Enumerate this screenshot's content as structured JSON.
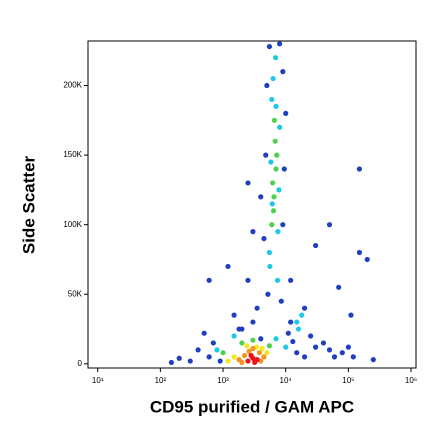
{
  "chart_data": {
    "type": "scatter",
    "xlabel": "CD95 purified / GAM APC",
    "ylabel": "Side Scatter",
    "xscale": "log",
    "xlim": [
      7,
      1200000
    ],
    "xticks": [
      {
        "value": 10,
        "label": "10¹"
      },
      {
        "value": 100,
        "label": "10²"
      },
      {
        "value": 1000,
        "label": "10³"
      },
      {
        "value": 10000,
        "label": "10⁴"
      },
      {
        "value": 100000,
        "label": "10⁵"
      },
      {
        "value": 1000000,
        "label": "10⁶"
      }
    ],
    "ylim": [
      -3000,
      232000
    ],
    "yticks": [
      0,
      {
        "value": 50000,
        "label": "50K"
      },
      {
        "value": 100000,
        "label": "100K"
      },
      {
        "value": 150000,
        "label": "150K"
      },
      {
        "value": 200000,
        "label": "200K"
      }
    ],
    "series": [
      {
        "color": "#1f3fbf",
        "x": [
          4500,
          9000,
          4800,
          9500,
          5000,
          9000,
          4000,
          10000,
          5500,
          8000,
          5200,
          8500,
          3500,
          12000,
          20000,
          25000,
          30000,
          50000,
          80000,
          100000,
          120000,
          40000,
          15000,
          600,
          400,
          300,
          700,
          150,
          200,
          2000,
          1500,
          3000,
          2500,
          600,
          1200,
          3000,
          70000,
          110000,
          150000,
          150000,
          200000,
          50000,
          30000,
          12000,
          2500,
          1800,
          4000,
          500,
          900,
          11000,
          13000,
          60000,
          250000,
          20000
        ],
        "values": [
          90000,
          100000,
          150000,
          140000,
          200000,
          210000,
          120000,
          180000,
          228000,
          230000,
          50000,
          45000,
          40000,
          30000,
          40000,
          20000,
          12000,
          10000,
          8000,
          12000,
          5000,
          15000,
          8000,
          5000,
          10000,
          2000,
          15000,
          1000,
          4000,
          25000,
          35000,
          30000,
          60000,
          60000,
          70000,
          95000,
          55000,
          35000,
          140000,
          80000,
          75000,
          100000,
          85000,
          60000,
          130000,
          25000,
          18000,
          22000,
          2000,
          22000,
          16000,
          5000,
          3000,
          5000
        ]
      },
      {
        "color": "#1ec8e8",
        "x": [
          5500,
          7500,
          6000,
          7800,
          5800,
          8000,
          6300,
          6900,
          5600,
          7400,
          6100,
          7000,
          15000,
          18000,
          16000,
          800,
          7000,
          10000,
          1500
        ],
        "values": [
          80000,
          95000,
          190000,
          125000,
          145000,
          170000,
          205000,
          220000,
          70000,
          60000,
          115000,
          185000,
          30000,
          35000,
          25000,
          10000,
          18000,
          12000,
          20000
        ]
      },
      {
        "color": "#4dd14f",
        "x": [
          6000,
          6500,
          7000,
          6800,
          6200,
          6400,
          7200,
          6600,
          1000,
          5500,
          2000,
          3000
        ],
        "values": [
          100000,
          120000,
          140000,
          160000,
          130000,
          110000,
          150000,
          175000,
          8000,
          13000,
          15000,
          17000
        ]
      },
      {
        "color": "#f5e61e",
        "x": [
          1500,
          5000,
          2400,
          3400,
          1200,
          4200
        ],
        "values": [
          5000,
          8000,
          13000,
          12000,
          2000,
          11000
        ]
      },
      {
        "color": "#f7941d",
        "x": [
          1800,
          2200,
          4000,
          4500,
          2600,
          3800,
          2000,
          3000
        ],
        "values": [
          3000,
          6000,
          2000,
          5000,
          9000,
          8000,
          1000,
          11000
        ]
      },
      {
        "color": "#e8141a",
        "x": [
          2500,
          3000,
          3500,
          2800,
          3200
        ],
        "values": [
          2000,
          4000,
          3000,
          6000,
          1000
        ]
      }
    ]
  }
}
